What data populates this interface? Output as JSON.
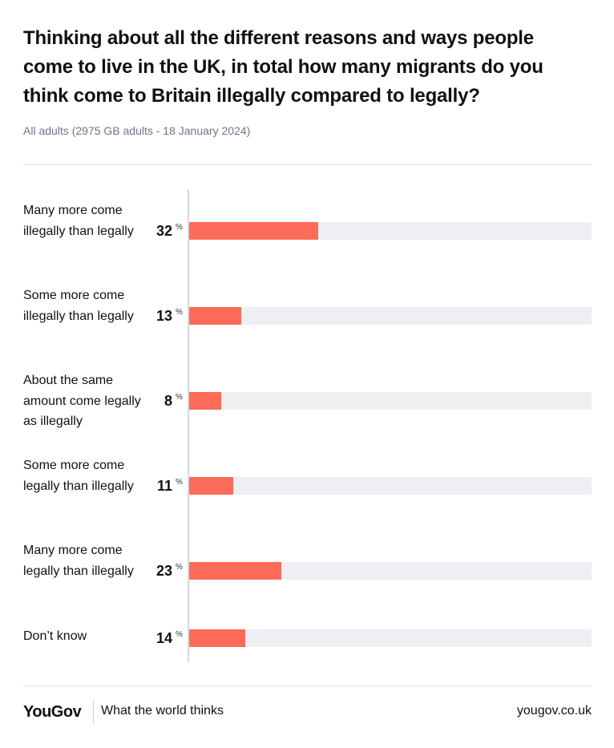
{
  "chart_data": {
    "type": "bar",
    "orientation": "horizontal",
    "title": "Thinking about all the different reasons and ways people come to live in the UK, in total how many migrants do you think come to Britain illegally compared to legally?",
    "subtitle": "All adults (2975 GB adults - 18 January 2024)",
    "unit": "%",
    "xlim": [
      0,
      100
    ],
    "colors": {
      "bar": "#ff6b5a",
      "track": "#efeff3"
    },
    "items": [
      {
        "label": "Many more come illegally than legally",
        "value": 32,
        "value_text": "32"
      },
      {
        "label": "Some more come illegally than legally",
        "value": 13,
        "value_text": "13"
      },
      {
        "label": "About the same amount come legally as illegally",
        "value": 8,
        "value_text": "8"
      },
      {
        "label": "Some more come legally than illegally",
        "value": 11,
        "value_text": "11"
      },
      {
        "label": "Many more come legally than illegally",
        "value": 23,
        "value_text": "23"
      },
      {
        "label": "Don’t know",
        "value": 14,
        "value_text": "14"
      }
    ]
  },
  "footer": {
    "logo": "YouGov",
    "tagline": "What the world thinks",
    "url": "yougov.co.uk"
  }
}
